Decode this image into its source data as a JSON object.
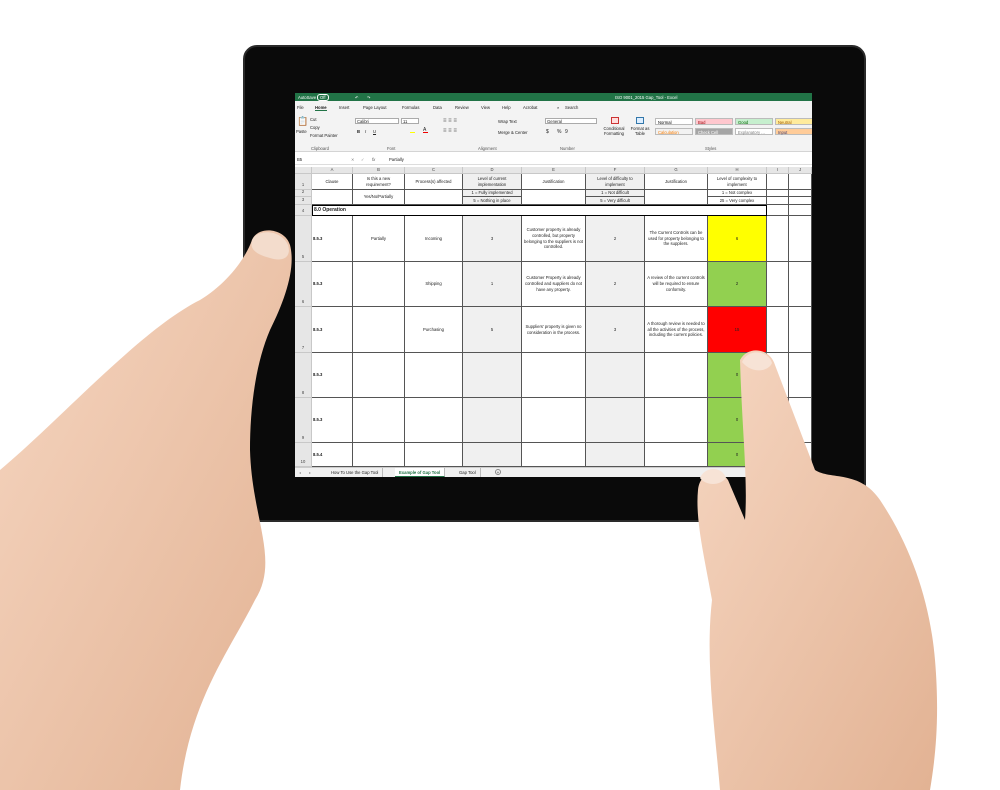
{
  "window": {
    "autosave_label": "AutoSave",
    "autosave_state": "Off",
    "title": "ISO 9001_2015 Gap_Tool - Excel"
  },
  "menu": [
    "File",
    "Home",
    "Insert",
    "Page Layout",
    "Formulas",
    "Data",
    "Review",
    "View",
    "Help",
    "Acrobat"
  ],
  "search_label": "Search",
  "ribbon": {
    "clipboard": {
      "paste": "Paste",
      "cut": "Cut",
      "copy": "Copy",
      "format_painter": "Format Painter",
      "group": "Clipboard"
    },
    "font": {
      "name": "Calibri",
      "size": "11",
      "group": "Font",
      "bold": "B",
      "italic": "I",
      "underline": "U"
    },
    "alignment": {
      "wrap": "Wrap Text",
      "merge": "Merge & Center",
      "group": "Alignment"
    },
    "number": {
      "format": "General",
      "currency": "$",
      "percent": "%",
      "comma": "9",
      "group": "Number"
    },
    "conditional": "Conditional Formatting",
    "format_table": "Format as Table",
    "styles": {
      "group": "Styles",
      "items": [
        {
          "label": "Normal",
          "bg": "#ffffff",
          "fg": "#000000"
        },
        {
          "label": "Bad",
          "bg": "#ffc7ce",
          "fg": "#9c0006"
        },
        {
          "label": "Good",
          "bg": "#c6efce",
          "fg": "#006100"
        },
        {
          "label": "Neutral",
          "bg": "#ffeb9c",
          "fg": "#9c5700"
        },
        {
          "label": "Calculation",
          "bg": "#f2f2f2",
          "fg": "#fa7d00"
        },
        {
          "label": "Check Cell",
          "bg": "#a5a5a5",
          "fg": "#ffffff"
        },
        {
          "label": "Explanatory ...",
          "bg": "#ffffff",
          "fg": "#7f7f7f"
        },
        {
          "label": "Input",
          "bg": "#ffcc99",
          "fg": "#3f3f76"
        }
      ]
    }
  },
  "formula_bar": {
    "name_box": "B5",
    "cancel": "✕",
    "enter": "✓",
    "fx": "fx",
    "value": "Partially"
  },
  "columns": [
    "A",
    "B",
    "C",
    "D",
    "E",
    "F",
    "G",
    "H",
    "I",
    "J"
  ],
  "header": {
    "clause": "Clause",
    "new_req": "Is this a new requirement?",
    "process": "Process(s) affected",
    "impl": "Level of current implementation",
    "just1": "Justification",
    "diff": "Level of difficulty to implement",
    "just2": "Justification",
    "complex": "Level of complexity to implement"
  },
  "legend": {
    "new_req": "Yes/No/Partially",
    "impl1": "1 = Fully implemented",
    "impl5": "5 = Nothing in place",
    "diff1": "1 = Not difficult",
    "diff5": "5 = Very difficult",
    "comp1": "1 = Not complex",
    "comp25": "25 = Very complex"
  },
  "section": "8.0 Operation",
  "rows": [
    {
      "num": "5",
      "clause": "8.5.3",
      "new_req": "Partially",
      "process": "Incoming",
      "impl": "3",
      "just1": "Customer property is already controlled, but property belonging to the suppliers is not controlled.",
      "diff": "2",
      "just2": "The Current Controls can be used for property belonging to the suppliers.",
      "complex": "6",
      "color": "#ffff00"
    },
    {
      "num": "6",
      "clause": "8.5.3",
      "new_req": "",
      "process": "Shipping",
      "impl": "1",
      "just1": "Customer Property is already controlled and suppliers do not have any property.",
      "diff": "2",
      "just2": "A review of the current controls will be required to ensure conformity.",
      "complex": "2",
      "color": "#92d050"
    },
    {
      "num": "7",
      "clause": "8.5.3",
      "new_req": "",
      "process": "Purchasing",
      "impl": "5",
      "just1": "Suppliers' property is given no consideration in the process.",
      "diff": "3",
      "just2": "A thorough review is needed to all the activities of the process, including the current policies.",
      "complex": "15",
      "color": "#ff0000"
    },
    {
      "num": "8",
      "clause": "8.5.3",
      "new_req": "",
      "process": "",
      "impl": "",
      "just1": "",
      "diff": "",
      "just2": "",
      "complex": "0",
      "color": "#92d050"
    },
    {
      "num": "9",
      "clause": "8.5.3",
      "new_req": "",
      "process": "",
      "impl": "",
      "just1": "",
      "diff": "",
      "just2": "",
      "complex": "0",
      "color": "#92d050"
    },
    {
      "num": "10",
      "clause": "8.5.4",
      "new_req": "",
      "process": "",
      "impl": "",
      "just1": "",
      "diff": "",
      "just2": "",
      "complex": "0",
      "color": "#92d050"
    }
  ],
  "sheet_tabs": [
    {
      "label": "How To Use the Gap Tool",
      "active": false
    },
    {
      "label": "Example of Gap Tool",
      "active": true
    },
    {
      "label": "Gap Tool",
      "active": false
    }
  ],
  "add_sheet": "+",
  "colors": {
    "excel_green": "#217346",
    "tablet": "#0a0a0a",
    "skin": "#efc6ab"
  }
}
